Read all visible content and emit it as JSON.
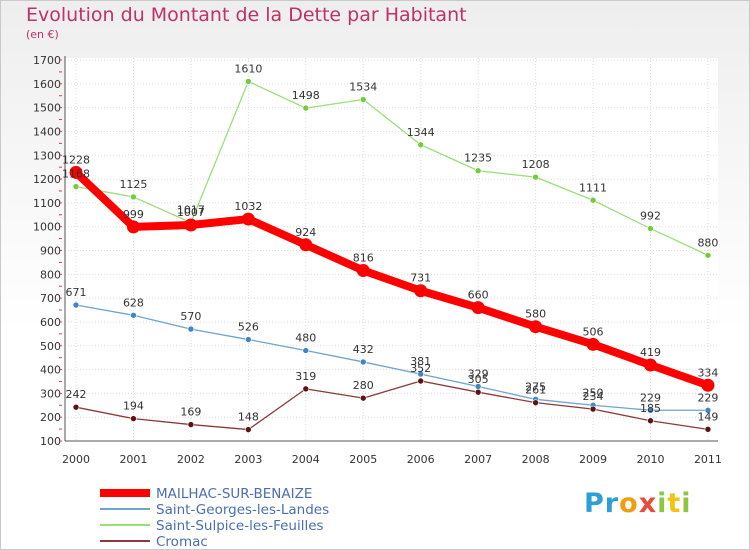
{
  "title": "Evolution du Montant de la Dette par Habitant",
  "subtitle": "(en €)",
  "logo": {
    "letters": [
      "P",
      "r",
      "o",
      "x",
      "i",
      "t",
      "i"
    ],
    "colors": [
      "#2c9fd6",
      "#2c9fd6",
      "#f39c12",
      "#e74c3c",
      "#8dc63f",
      "#f1c40f",
      "#8dc63f"
    ]
  },
  "chart_data": {
    "type": "line",
    "x": [
      "2000",
      "2001",
      "2002",
      "2003",
      "2004",
      "2005",
      "2006",
      "2007",
      "2008",
      "2009",
      "2010",
      "2011"
    ],
    "ylim": [
      100,
      1700
    ],
    "yticks": [
      100,
      200,
      300,
      400,
      500,
      600,
      700,
      800,
      900,
      1000,
      1100,
      1200,
      1300,
      1400,
      1500,
      1600,
      1700
    ],
    "grid": true,
    "legend_position": "bottom-left",
    "series": [
      {
        "name": "MAILHAC-SUR-BENAIZE",
        "color": "#ff0000",
        "point_color": "#ff0000",
        "width": 8,
        "values": [
          1228,
          999,
          1007,
          1032,
          924,
          816,
          731,
          660,
          580,
          506,
          419,
          334
        ]
      },
      {
        "name": "Saint-Georges-les-Landes",
        "color": "#6ea3cf",
        "point_color": "#3f86c6",
        "width": 1.3,
        "values": [
          671,
          628,
          570,
          526,
          480,
          432,
          381,
          329,
          275,
          250,
          229,
          229
        ]
      },
      {
        "name": "Saint-Sulpice-les-Feuilles",
        "color": "#99e07a",
        "point_color": "#74cc3a",
        "width": 1.3,
        "values": [
          1168,
          1125,
          1017,
          1610,
          1498,
          1534,
          1344,
          1235,
          1208,
          1111,
          992,
          880
        ]
      },
      {
        "name": "Cromac",
        "color": "#8b3a3a",
        "point_color": "#5a1414",
        "width": 1.3,
        "values": [
          242,
          194,
          169,
          148,
          319,
          280,
          352,
          305,
          261,
          234,
          185,
          149
        ]
      }
    ]
  }
}
